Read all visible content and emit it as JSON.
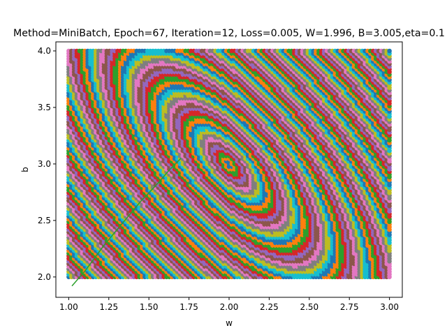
{
  "chart_data": {
    "type": "scatter",
    "title": "Method=MiniBatch, Epoch=67, Iteration=12, Loss=0.005, W=1.996, B=3.005,eta=0.1",
    "xlabel": "w",
    "ylabel": "b",
    "xlim": [
      0.92,
      3.08
    ],
    "ylim": [
      1.82,
      4.08
    ],
    "xticks": [
      "1.00",
      "1.25",
      "1.50",
      "1.75",
      "2.00",
      "2.25",
      "2.50",
      "2.75",
      "3.00"
    ],
    "yticks": [
      "2.0",
      "2.5",
      "3.0",
      "3.5",
      "4.0"
    ],
    "grid": false,
    "legend": "none",
    "loss_surface": {
      "w_range": [
        1.0,
        3.0
      ],
      "b_range": [
        2.0,
        4.0
      ],
      "minimum": [
        2.0,
        3.0
      ],
      "contour_levels": 100,
      "description_colors": [
        "#1f77b4",
        "#ff7f0e",
        "#2ca02c",
        "#d62728",
        "#9467bd",
        "#8c564b",
        "#e377c2",
        "#7f7f7f",
        "#bcbd22",
        "#17becf"
      ]
    },
    "trajectory": {
      "color": "#2ca02c",
      "points": [
        [
          1.02,
          1.92
        ],
        [
          1.1,
          2.05
        ],
        [
          1.22,
          2.28
        ],
        [
          1.35,
          2.5
        ],
        [
          1.45,
          2.67
        ],
        [
          1.55,
          2.82
        ],
        [
          1.63,
          2.95
        ],
        [
          1.7,
          3.05
        ]
      ]
    }
  }
}
